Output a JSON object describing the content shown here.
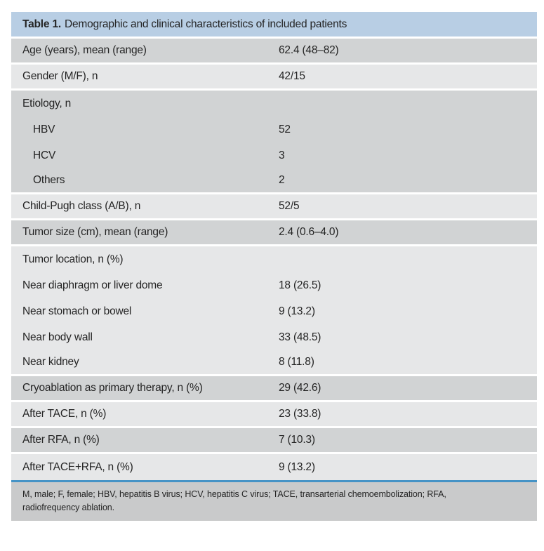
{
  "colors": {
    "header_bg": "#b8cee4",
    "row_dark": "#d1d3d4",
    "row_light": "#e6e7e8",
    "footer_bg": "#c9cacb",
    "rule_blue": "#4593c6",
    "text": "#242424"
  },
  "table": {
    "title_label": "Table 1.",
    "title_text": "Demographic and clinical characteristics of included patients",
    "rows": [
      {
        "label": "Age (years), mean (range)",
        "value": "62.4 (48–82)"
      },
      {
        "label": "Gender (M/F), n",
        "value": "42/15"
      },
      {
        "label": "Etiology, n",
        "value": ""
      },
      {
        "label": "HBV",
        "value": "52"
      },
      {
        "label": "HCV",
        "value": "3"
      },
      {
        "label": "Others",
        "value": "2"
      },
      {
        "label": "Child-Pugh class (A/B), n",
        "value": "52/5"
      },
      {
        "label": "Tumor size (cm), mean (range)",
        "value": "2.4 (0.6–4.0)"
      },
      {
        "label": "Tumor location, n (%)",
        "value": ""
      },
      {
        "label": "Near diaphragm or liver dome",
        "value": "18 (26.5)"
      },
      {
        "label": "Near stomach or bowel",
        "value": "9 (13.2)"
      },
      {
        "label": "Near body wall",
        "value": "33 (48.5)"
      },
      {
        "label": "Near kidney",
        "value": "8 (11.8)"
      },
      {
        "label": "Cryoablation as primary therapy, n (%)",
        "value": "29 (42.6)"
      },
      {
        "label": "After TACE, n (%)",
        "value": "23 (33.8)"
      },
      {
        "label": "After RFA, n (%)",
        "value": "7 (10.3)"
      },
      {
        "label": "After TACE+RFA, n (%)",
        "value": "9 (13.2)"
      }
    ],
    "footnote_line1": "M, male; F, female; HBV, hepatitis B virus; HCV, hepatitis C virus; TACE, transarterial chemoembolization; RFA,",
    "footnote_line2": "radiofrequency ablation."
  }
}
